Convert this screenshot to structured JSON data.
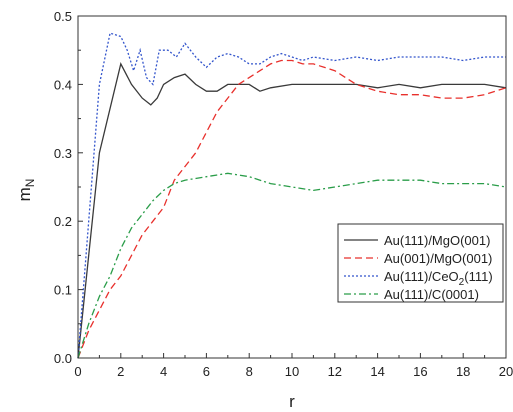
{
  "chart_data": {
    "type": "line",
    "xlabel": "r",
    "ylabel_main": "m",
    "ylabel_sub": "N",
    "xlim": [
      0,
      20
    ],
    "ylim": [
      0,
      0.5
    ],
    "xticks": [
      0,
      2,
      4,
      6,
      8,
      10,
      12,
      14,
      16,
      18,
      20
    ],
    "yticks": [
      0.0,
      0.1,
      0.2,
      0.3,
      0.4,
      0.5
    ],
    "ytick_labels": [
      "0.0",
      "0.1",
      "0.2",
      "0.3",
      "0.4",
      "0.5"
    ],
    "grid": false,
    "legend_position": "right",
    "series": [
      {
        "key": "au111-mgo001",
        "name": "Au(111)/MgO(001)",
        "color": "#3a3a3a",
        "dash": "solid",
        "points": [
          [
            0,
            0
          ],
          [
            1,
            0.3
          ],
          [
            2,
            0.43
          ],
          [
            2.5,
            0.4
          ],
          [
            3,
            0.38
          ],
          [
            3.4,
            0.37
          ],
          [
            3.7,
            0.38
          ],
          [
            4,
            0.4
          ],
          [
            4.5,
            0.41
          ],
          [
            5,
            0.415
          ],
          [
            5.5,
            0.4
          ],
          [
            6,
            0.39
          ],
          [
            6.5,
            0.39
          ],
          [
            7,
            0.4
          ],
          [
            8,
            0.4
          ],
          [
            8.5,
            0.39
          ],
          [
            9,
            0.395
          ],
          [
            10,
            0.4
          ],
          [
            11,
            0.4
          ],
          [
            12,
            0.4
          ],
          [
            13,
            0.4
          ],
          [
            14,
            0.395
          ],
          [
            15,
            0.4
          ],
          [
            16,
            0.395
          ],
          [
            17,
            0.4
          ],
          [
            18,
            0.4
          ],
          [
            19,
            0.4
          ],
          [
            20,
            0.395
          ]
        ]
      },
      {
        "key": "au001-mgo001",
        "name": "Au(001)/MgO(001)",
        "color": "#e8302c",
        "dash": "dashed",
        "points": [
          [
            0,
            0
          ],
          [
            0.5,
            0.04
          ],
          [
            1,
            0.07
          ],
          [
            1.5,
            0.1
          ],
          [
            2,
            0.12
          ],
          [
            2.5,
            0.15
          ],
          [
            3,
            0.18
          ],
          [
            3.5,
            0.2
          ],
          [
            4,
            0.22
          ],
          [
            4.5,
            0.26
          ],
          [
            5,
            0.28
          ],
          [
            5.5,
            0.3
          ],
          [
            6,
            0.33
          ],
          [
            6.5,
            0.36
          ],
          [
            7,
            0.38
          ],
          [
            7.5,
            0.4
          ],
          [
            8,
            0.41
          ],
          [
            8.5,
            0.42
          ],
          [
            9,
            0.43
          ],
          [
            9.5,
            0.435
          ],
          [
            10,
            0.435
          ],
          [
            10.5,
            0.43
          ],
          [
            11,
            0.43
          ],
          [
            11.5,
            0.425
          ],
          [
            12,
            0.42
          ],
          [
            13,
            0.4
          ],
          [
            14,
            0.39
          ],
          [
            15,
            0.385
          ],
          [
            16,
            0.385
          ],
          [
            17,
            0.38
          ],
          [
            18,
            0.38
          ],
          [
            19,
            0.385
          ],
          [
            20,
            0.395
          ]
        ]
      },
      {
        "key": "au111-ceo2111",
        "name": "Au(111)/CeO2(111)",
        "name_parts": [
          "Au(111)/CeO",
          "2",
          "(111)"
        ],
        "color": "#3355cc",
        "dash": "dotted",
        "points": [
          [
            0,
            0
          ],
          [
            0.5,
            0.2
          ],
          [
            1,
            0.4
          ],
          [
            1.5,
            0.475
          ],
          [
            2,
            0.47
          ],
          [
            2.3,
            0.45
          ],
          [
            2.6,
            0.42
          ],
          [
            2.9,
            0.45
          ],
          [
            3.2,
            0.41
          ],
          [
            3.5,
            0.4
          ],
          [
            3.8,
            0.45
          ],
          [
            4.2,
            0.45
          ],
          [
            4.6,
            0.44
          ],
          [
            5,
            0.46
          ],
          [
            5.5,
            0.44
          ],
          [
            6,
            0.425
          ],
          [
            6.5,
            0.44
          ],
          [
            7,
            0.445
          ],
          [
            7.5,
            0.44
          ],
          [
            8,
            0.43
          ],
          [
            8.5,
            0.43
          ],
          [
            9,
            0.44
          ],
          [
            9.5,
            0.445
          ],
          [
            10,
            0.44
          ],
          [
            10.5,
            0.435
          ],
          [
            11,
            0.44
          ],
          [
            12,
            0.435
          ],
          [
            13,
            0.44
          ],
          [
            14,
            0.435
          ],
          [
            15,
            0.44
          ],
          [
            16,
            0.44
          ],
          [
            17,
            0.44
          ],
          [
            18,
            0.435
          ],
          [
            19,
            0.44
          ],
          [
            20,
            0.44
          ]
        ]
      },
      {
        "key": "au111-c0001",
        "name": "Au(111)/C(0001)",
        "color": "#2a9d49",
        "dash": "dashdot",
        "points": [
          [
            0,
            0
          ],
          [
            0.5,
            0.05
          ],
          [
            1,
            0.09
          ],
          [
            1.5,
            0.12
          ],
          [
            2,
            0.16
          ],
          [
            2.5,
            0.19
          ],
          [
            3,
            0.21
          ],
          [
            3.5,
            0.23
          ],
          [
            4,
            0.245
          ],
          [
            4.5,
            0.255
          ],
          [
            5,
            0.26
          ],
          [
            6,
            0.265
          ],
          [
            7,
            0.27
          ],
          [
            8,
            0.265
          ],
          [
            9,
            0.255
          ],
          [
            10,
            0.25
          ],
          [
            11,
            0.245
          ],
          [
            12,
            0.25
          ],
          [
            13,
            0.255
          ],
          [
            14,
            0.26
          ],
          [
            15,
            0.26
          ],
          [
            16,
            0.26
          ],
          [
            17,
            0.255
          ],
          [
            18,
            0.255
          ],
          [
            19,
            0.255
          ],
          [
            20,
            0.25
          ]
        ]
      }
    ]
  }
}
